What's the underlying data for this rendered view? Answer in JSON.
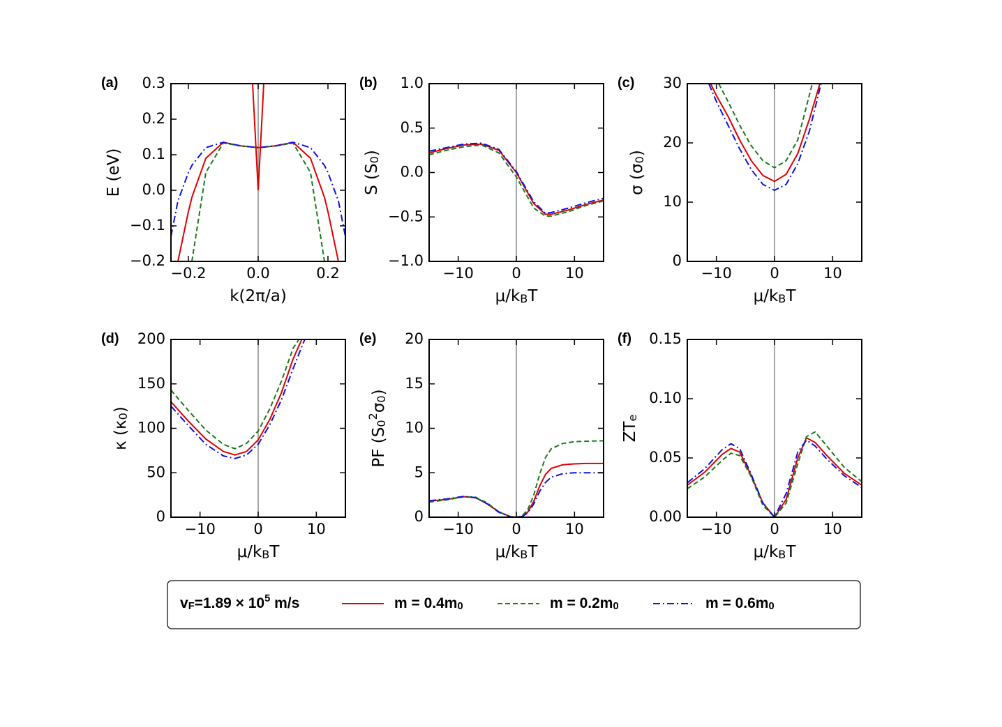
{
  "chart_data": [
    {
      "type": "line",
      "label": "(a)",
      "xlabel": "k(2π/a)",
      "ylabel": "E (eV)",
      "xlim": [
        -0.25,
        0.25
      ],
      "ylim": [
        -0.2,
        0.3
      ],
      "xticks": [
        {
          "value": -0.2,
          "label": "−0.2"
        },
        {
          "value": 0,
          "label": "0.0"
        },
        {
          "value": 0.2,
          "label": "0.2"
        }
      ],
      "yticks": [
        {
          "value": -0.2,
          "label": "−0.2"
        },
        {
          "value": -0.1,
          "label": "−0.1"
        },
        {
          "value": 0,
          "label": "0.0"
        },
        {
          "value": 0.1,
          "label": "0.1"
        },
        {
          "value": 0.2,
          "label": "0.2"
        },
        {
          "value": 0.3,
          "label": "0.3"
        }
      ],
      "series": [
        {
          "name": "m  = 0.4m_0",
          "color": "#e00000",
          "linestyle": "solid",
          "x": [
            -0.25,
            -0.23,
            -0.2,
            -0.19,
            -0.15,
            -0.1,
            -0.05,
            0,
            0.05,
            0.1,
            0.15,
            0.19,
            0.2,
            0.23,
            0.25
          ],
          "values": [
            null,
            -0.2,
            -0.06,
            -0.02,
            0.09,
            0.135,
            0.125,
            0.12,
            0.125,
            0.135,
            0.09,
            -0.02,
            -0.06,
            -0.2,
            null
          ]
        },
        {
          "name": "m  = 0.2m_0",
          "color": "#1a7a1a",
          "linestyle": "dashed",
          "x": [
            -0.25,
            -0.23,
            -0.2,
            -0.19,
            -0.15,
            -0.1,
            -0.05,
            0,
            0.05,
            0.1,
            0.15,
            0.19,
            0.2,
            0.23,
            0.25
          ],
          "values": [
            null,
            null,
            null,
            -0.2,
            0.05,
            0.133,
            0.125,
            0.12,
            0.125,
            0.133,
            0.05,
            -0.2,
            null,
            null,
            null
          ]
        },
        {
          "name": "m  = 0.6m_0",
          "color": "#1010e0",
          "linestyle": "dashdot",
          "x": [
            -0.25,
            -0.23,
            -0.2,
            -0.19,
            -0.15,
            -0.1,
            -0.05,
            0,
            0.05,
            0.1,
            0.15,
            0.19,
            0.2,
            0.23,
            0.25
          ],
          "values": [
            -0.13,
            -0.03,
            0.05,
            0.07,
            0.12,
            0.135,
            0.125,
            0.12,
            0.125,
            0.135,
            0.12,
            0.07,
            0.05,
            -0.03,
            -0.13
          ]
        },
        {
          "color": "#e00000",
          "linestyle": "solid",
          "x": [
            -0.016,
            0,
            0.016
          ],
          "values": [
            0.3,
            0,
            0.3
          ]
        }
      ]
    },
    {
      "type": "line",
      "label": "(b)",
      "xlabel": "μ/k_BT",
      "ylabel": "S (S_0)",
      "xlim": [
        -15,
        15
      ],
      "ylim": [
        -1,
        1
      ],
      "xticks": [
        {
          "value": -10,
          "label": "−10"
        },
        0,
        10
      ],
      "yticks": [
        {
          "value": -1,
          "label": "−1.0"
        },
        {
          "value": -0.5,
          "label": "−0.5"
        },
        {
          "value": 0,
          "label": "0.0"
        },
        {
          "value": 0.5,
          "label": "0.5"
        },
        {
          "value": 1,
          "label": "1.0"
        }
      ],
      "series": [
        {
          "color": "#e00000",
          "linestyle": "solid",
          "x": [
            -15,
            -12,
            -9,
            -6,
            -3,
            0,
            3,
            5,
            6,
            9,
            12,
            15
          ],
          "values": [
            0.22,
            0.27,
            0.31,
            0.32,
            0.25,
            0.0,
            -0.35,
            -0.47,
            -0.47,
            -0.42,
            -0.36,
            -0.31
          ]
        },
        {
          "color": "#1a7a1a",
          "linestyle": "dashed",
          "x": [
            -15,
            -12,
            -9,
            -6,
            -3,
            0,
            3,
            5,
            6,
            9,
            12,
            15
          ],
          "values": [
            0.2,
            0.25,
            0.29,
            0.31,
            0.22,
            -0.05,
            -0.4,
            -0.49,
            -0.49,
            -0.44,
            -0.37,
            -0.32
          ]
        },
        {
          "color": "#1010e0",
          "linestyle": "dashdot",
          "x": [
            -15,
            -12,
            -9,
            -6,
            -3,
            0,
            3,
            5,
            6,
            9,
            12,
            15
          ],
          "values": [
            0.24,
            0.28,
            0.32,
            0.33,
            0.26,
            0.01,
            -0.33,
            -0.46,
            -0.45,
            -0.4,
            -0.34,
            -0.29
          ]
        }
      ]
    },
    {
      "type": "line",
      "label": "(c)",
      "xlabel": "μ/k_BT",
      "ylabel": "σ (σ_0)",
      "xlim": [
        -15,
        15
      ],
      "ylim": [
        0,
        30
      ],
      "xticks": [
        {
          "value": -10,
          "label": "−10"
        },
        0,
        10
      ],
      "yticks": [
        0,
        10,
        20,
        30
      ],
      "series": [
        {
          "color": "#e00000",
          "linestyle": "solid",
          "x": [
            -11,
            -10,
            -8,
            -6,
            -4,
            -2,
            0,
            2,
            4,
            6,
            7.8
          ],
          "values": [
            30,
            28,
            24.5,
            20.5,
            17,
            14.5,
            13.5,
            14.7,
            18.2,
            24,
            30
          ]
        },
        {
          "color": "#1a7a1a",
          "linestyle": "dashed",
          "x": [
            -9.6,
            -8,
            -6,
            -4,
            -2,
            0,
            2,
            4,
            6.5
          ],
          "values": [
            30,
            27,
            23,
            19.5,
            17,
            15.8,
            17,
            20.5,
            30
          ]
        },
        {
          "color": "#1010e0",
          "linestyle": "dashdot",
          "x": [
            -11.3,
            -10,
            -8,
            -6,
            -4,
            -2,
            0,
            2,
            4,
            6,
            8
          ],
          "values": [
            30,
            27,
            23,
            19,
            15.5,
            13,
            12,
            13,
            16.5,
            22,
            30
          ]
        }
      ]
    },
    {
      "type": "line",
      "label": "(d)",
      "xlabel": "μ/k_BT",
      "ylabel": "κ (κ_0)",
      "xlim": [
        -15,
        15
      ],
      "ylim": [
        0,
        200
      ],
      "xticks": [
        {
          "value": -10,
          "label": "−10"
        },
        0,
        10
      ],
      "yticks": [
        0,
        50,
        100,
        150,
        200
      ],
      "series": [
        {
          "color": "#e00000",
          "linestyle": "solid",
          "x": [
            -15,
            -12,
            -9,
            -6,
            -4,
            -2,
            0,
            2,
            4,
            6,
            7.5
          ],
          "values": [
            130,
            108,
            88,
            74,
            70,
            74,
            87,
            110,
            140,
            178,
            200
          ]
        },
        {
          "color": "#1a7a1a",
          "linestyle": "dashed",
          "x": [
            -15,
            -12,
            -9,
            -6,
            -4,
            -2,
            0,
            2,
            4,
            6,
            7
          ],
          "values": [
            143,
            120,
            98,
            82,
            77,
            83,
            97,
            122,
            153,
            190,
            200
          ]
        },
        {
          "color": "#1010e0",
          "linestyle": "dashdot",
          "x": [
            -15,
            -12,
            -9,
            -6,
            -4,
            -2,
            0,
            2,
            4,
            6,
            8
          ],
          "values": [
            125,
            103,
            82,
            69,
            66,
            70,
            82,
            104,
            132,
            167,
            200
          ]
        }
      ]
    },
    {
      "type": "line",
      "label": "(e)",
      "xlabel": "μ/k_BT",
      "ylabel": "PF (S_0^2σ_0)",
      "xlim": [
        -15,
        15
      ],
      "ylim": [
        0,
        20
      ],
      "xticks": [
        {
          "value": -10,
          "label": "−10"
        },
        0,
        10
      ],
      "yticks": [
        0,
        5,
        10,
        15,
        20
      ],
      "series": [
        {
          "color": "#e00000",
          "linestyle": "solid",
          "x": [
            -15,
            -12,
            -9,
            -7,
            -5,
            -3,
            -1,
            0,
            1,
            2,
            3,
            4,
            5,
            6,
            8,
            10,
            12,
            15
          ],
          "values": [
            1.8,
            2.0,
            2.3,
            2.2,
            1.5,
            0.6,
            0.05,
            0,
            0.1,
            0.6,
            1.8,
            3.5,
            4.8,
            5.5,
            5.9,
            6.0,
            6.05,
            6.05
          ]
        },
        {
          "color": "#1a7a1a",
          "linestyle": "dashed",
          "x": [
            -15,
            -12,
            -9,
            -7,
            -5,
            -3,
            -1,
            0,
            1,
            2,
            3,
            4,
            5,
            6,
            8,
            10,
            12,
            15
          ],
          "values": [
            1.7,
            1.95,
            2.3,
            2.25,
            1.6,
            0.6,
            0.05,
            0,
            0.15,
            0.9,
            2.5,
            4.8,
            6.7,
            7.7,
            8.3,
            8.5,
            8.55,
            8.6
          ]
        },
        {
          "color": "#1010e0",
          "linestyle": "dashdot",
          "x": [
            -15,
            -12,
            -9,
            -7,
            -5,
            -3,
            -1,
            0,
            1,
            2,
            3,
            4,
            5,
            6,
            8,
            10,
            12,
            15
          ],
          "values": [
            1.85,
            2.05,
            2.35,
            2.2,
            1.5,
            0.55,
            0.05,
            0,
            0.08,
            0.5,
            1.5,
            2.9,
            3.9,
            4.5,
            4.9,
            5.0,
            5.0,
            5.0
          ]
        }
      ]
    },
    {
      "type": "line",
      "label": "(f)",
      "xlabel": "μ/k_BT",
      "ylabel": "ZT_e",
      "xlim": [
        -15,
        15
      ],
      "ylim": [
        0,
        0.15
      ],
      "xticks": [
        {
          "value": -10,
          "label": "−10"
        },
        0,
        10
      ],
      "yticks": [
        {
          "value": 0,
          "label": "0.00"
        },
        {
          "value": 0.05,
          "label": "0.05"
        },
        {
          "value": 0.1,
          "label": "0.10"
        },
        {
          "value": 0.15,
          "label": "0.15"
        }
      ],
      "series": [
        {
          "color": "#e00000",
          "linestyle": "solid",
          "x": [
            -15,
            -12,
            -9,
            -7.5,
            -6,
            -4,
            -2,
            0,
            2,
            4,
            5.5,
            7,
            9,
            12,
            15
          ],
          "values": [
            0.027,
            0.038,
            0.053,
            0.058,
            0.055,
            0.035,
            0.012,
            0,
            0.015,
            0.05,
            0.067,
            0.063,
            0.052,
            0.037,
            0.027
          ]
        },
        {
          "color": "#1a7a1a",
          "linestyle": "dashed",
          "x": [
            -15,
            -12,
            -9,
            -7.5,
            -6,
            -4,
            -2,
            0,
            2,
            4,
            5.5,
            7,
            9,
            12,
            15
          ],
          "values": [
            0.024,
            0.034,
            0.048,
            0.054,
            0.052,
            0.034,
            0.01,
            0,
            0.012,
            0.045,
            0.068,
            0.072,
            0.06,
            0.042,
            0.03
          ]
        },
        {
          "color": "#1010e0",
          "linestyle": "dashdot",
          "x": [
            -15,
            -12,
            -9,
            -7.5,
            -6,
            -4,
            -2,
            0,
            2,
            4,
            5.5,
            7,
            9,
            12,
            15
          ],
          "values": [
            0.029,
            0.041,
            0.057,
            0.062,
            0.058,
            0.036,
            0.012,
            0,
            0.02,
            0.055,
            0.065,
            0.06,
            0.049,
            0.035,
            0.025
          ]
        }
      ]
    }
  ],
  "legend": {
    "title": "v_F=1.89 × 10^5 m/s"
  }
}
